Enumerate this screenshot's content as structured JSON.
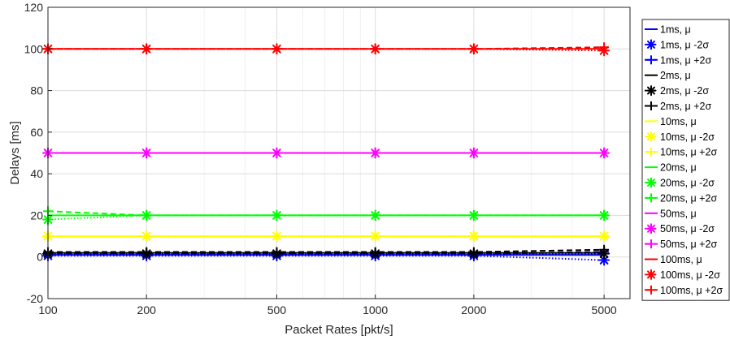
{
  "chart_data": {
    "type": "line",
    "xlabel": "Packet Rates [pkt/s]",
    "ylabel": "Delays [ms]",
    "x_scale": "log",
    "xlim": [
      100,
      6000
    ],
    "ylim": [
      -20,
      120
    ],
    "x": [
      100,
      200,
      500,
      1000,
      2000,
      5000
    ],
    "x_ticks": [
      "100",
      "200",
      "500",
      "1000",
      "2000",
      "5000"
    ],
    "y_ticks": [
      "-20",
      "0",
      "20",
      "40",
      "60",
      "80",
      "100",
      "120"
    ],
    "grid": true,
    "legend_position": "outside-right",
    "series": [
      {
        "name": "1ms, μ",
        "color": "#0000ff",
        "style": "solid",
        "marker": "none",
        "values": [
          1,
          1,
          1,
          1,
          1,
          1
        ]
      },
      {
        "name": "1ms, μ -2σ",
        "color": "#0000ff",
        "style": "dotted",
        "marker": "asterisk",
        "values": [
          0.6,
          0.6,
          0.6,
          0.6,
          0.6,
          -1.5
        ]
      },
      {
        "name": "1ms, μ +2σ",
        "color": "#0000ff",
        "style": "dashed",
        "marker": "plus",
        "values": [
          1.4,
          1.4,
          1.4,
          1.4,
          1.4,
          2.5
        ]
      },
      {
        "name": "2ms, μ",
        "color": "#000000",
        "style": "solid",
        "marker": "none",
        "values": [
          2,
          2,
          2,
          2,
          2,
          2
        ]
      },
      {
        "name": "2ms, μ -2σ",
        "color": "#000000",
        "style": "dotted",
        "marker": "asterisk",
        "values": [
          1.6,
          1.6,
          1.6,
          1.6,
          1.6,
          1.6
        ]
      },
      {
        "name": "2ms, μ +2σ",
        "color": "#000000",
        "style": "dashed",
        "marker": "plus",
        "values": [
          2.4,
          2.4,
          2.4,
          2.4,
          2.4,
          3.5
        ]
      },
      {
        "name": "10ms, μ",
        "color": "#ffff00",
        "style": "solid",
        "marker": "none",
        "values": [
          10,
          10,
          10,
          10,
          10,
          10
        ]
      },
      {
        "name": "10ms, μ -2σ",
        "color": "#ffff00",
        "style": "dotted",
        "marker": "asterisk",
        "values": [
          10,
          10,
          10,
          10,
          10,
          10
        ]
      },
      {
        "name": "10ms, μ +2σ",
        "color": "#ffff00",
        "style": "dashed",
        "marker": "plus",
        "values": [
          10,
          10,
          10,
          10,
          10,
          10
        ]
      },
      {
        "name": "20ms, μ",
        "color": "#00ff00",
        "style": "solid",
        "marker": "none",
        "values": [
          20,
          20,
          20,
          20,
          20,
          20
        ]
      },
      {
        "name": "20ms, μ -2σ",
        "color": "#00ff00",
        "style": "dotted",
        "marker": "asterisk",
        "values": [
          18,
          20,
          20,
          20,
          20,
          20
        ]
      },
      {
        "name": "20ms, μ +2σ",
        "color": "#00ff00",
        "style": "dashed",
        "marker": "plus",
        "values": [
          22,
          20,
          20,
          20,
          20,
          20
        ]
      },
      {
        "name": "50ms, μ",
        "color": "#ff00ff",
        "style": "solid",
        "marker": "none",
        "values": [
          50,
          50,
          50,
          50,
          50,
          50
        ]
      },
      {
        "name": "50ms, μ -2σ",
        "color": "#ff00ff",
        "style": "dotted",
        "marker": "asterisk",
        "values": [
          50,
          50,
          50,
          50,
          50,
          50
        ]
      },
      {
        "name": "50ms, μ +2σ",
        "color": "#ff00ff",
        "style": "dashed",
        "marker": "plus",
        "values": [
          50,
          50,
          50,
          50,
          50,
          50
        ]
      },
      {
        "name": "100ms, μ",
        "color": "#ff0000",
        "style": "solid",
        "marker": "none",
        "values": [
          100,
          100,
          100,
          100,
          100,
          100
        ]
      },
      {
        "name": "100ms, μ -2σ",
        "color": "#ff0000",
        "style": "dotted",
        "marker": "asterisk",
        "values": [
          100,
          100,
          100,
          100,
          100,
          99.2
        ]
      },
      {
        "name": "100ms, μ +2σ",
        "color": "#ff0000",
        "style": "dashed",
        "marker": "plus",
        "values": [
          100,
          100,
          100,
          100,
          100,
          100.8
        ]
      }
    ]
  }
}
